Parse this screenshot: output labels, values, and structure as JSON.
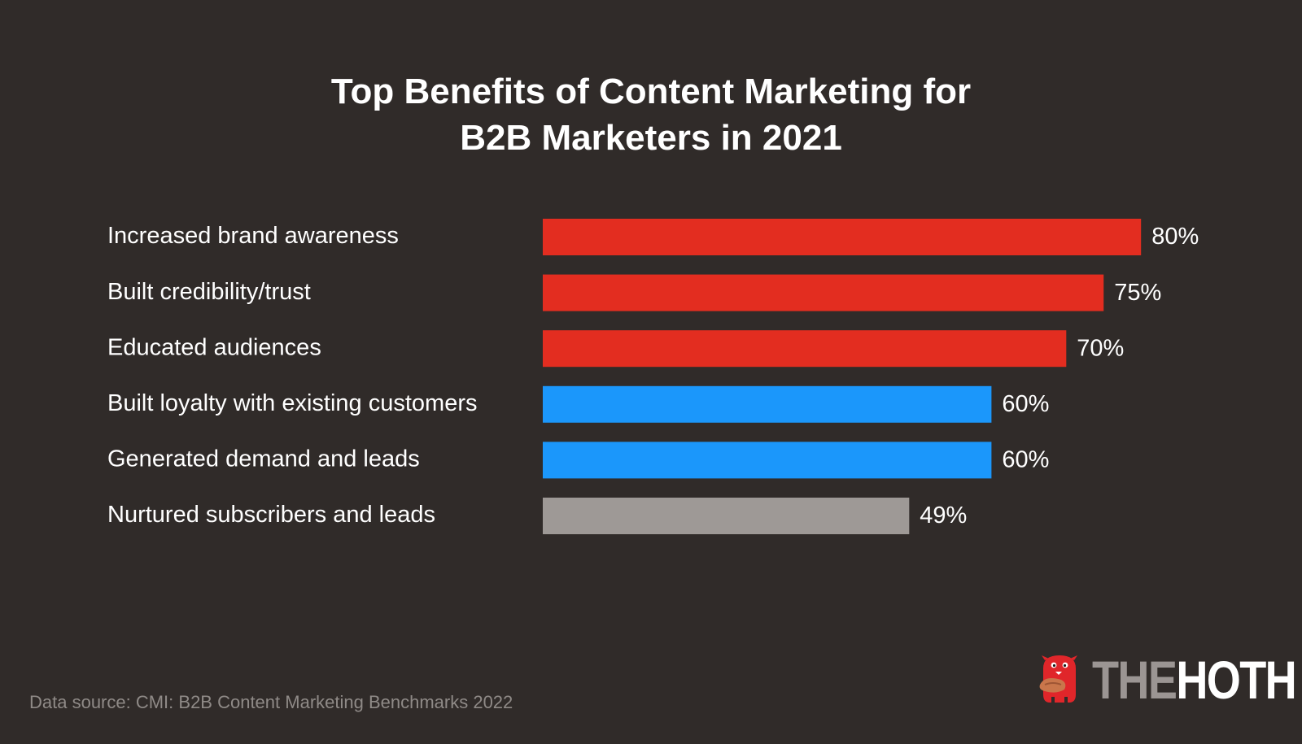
{
  "chart_data": {
    "type": "bar",
    "orientation": "horizontal",
    "title_lines": [
      "Top Benefits of Content Marketing for",
      "B2B Marketers in 2021"
    ],
    "categories": [
      "Increased brand awareness",
      "Built credibility/trust",
      "Educated audiences",
      "Built loyalty with existing customers",
      "Generated demand and leads",
      "Nurtured subscribers and leads"
    ],
    "values": [
      80,
      75,
      70,
      60,
      60,
      49
    ],
    "value_labels": [
      "80%",
      "75%",
      "70%",
      "60%",
      "60%",
      "49%"
    ],
    "bar_colors": [
      "#e32d20",
      "#e32d20",
      "#e32d20",
      "#1b97fb",
      "#1b97fb",
      "#9e9996"
    ],
    "xlim": [
      0,
      100
    ],
    "grid": false,
    "axes_visible": false,
    "legend": "none"
  },
  "source_note": "Data source: CMI: B2B Content Marketing Benchmarks 2022",
  "logo": {
    "word_the": "THE",
    "word_hoth": "HOTH",
    "icon": "red-monster-mascot-icon",
    "mascot_color": "#e0262a"
  },
  "colors": {
    "background": "#302b29",
    "text": "#ffffff",
    "muted_text": "#8f8a87"
  }
}
